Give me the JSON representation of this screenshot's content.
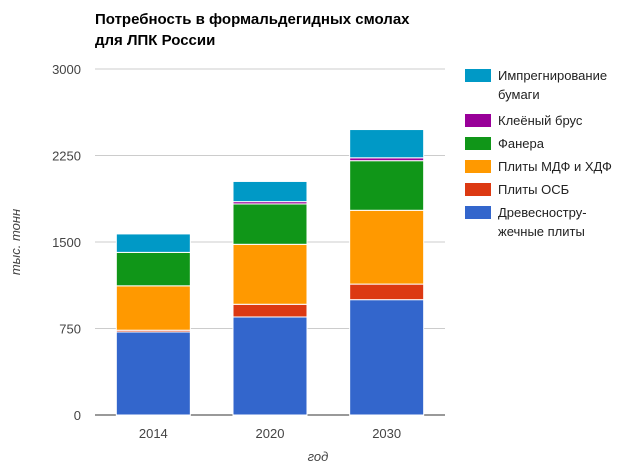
{
  "chart_data": {
    "type": "bar",
    "stacked": true,
    "title": [
      "Потребность в формальдегидных смолах",
      "для ЛПК России"
    ],
    "xlabel": "год",
    "ylabel": "тыс. тонн",
    "ylim": [
      0,
      3000
    ],
    "yticks": [
      "0",
      "750",
      "1500",
      "2250",
      "3000"
    ],
    "ytick_values": [
      0,
      750,
      1500,
      2250,
      3000
    ],
    "grid": true,
    "legend": "right",
    "categories": [
      "2014",
      "2020",
      "2030"
    ],
    "series": [
      {
        "name": [
          "Древесностру-",
          "жечные плиты"
        ],
        "color": "#3366cc",
        "values": [
          720,
          850,
          1000
        ]
      },
      {
        "name": [
          "Плиты ОСБ"
        ],
        "color": "#dc3912",
        "values": [
          15,
          110,
          135
        ]
      },
      {
        "name": [
          "Плиты МДФ и ХДФ"
        ],
        "color": "#ff9900",
        "values": [
          385,
          520,
          640
        ]
      },
      {
        "name": [
          "Фанера"
        ],
        "color": "#109618",
        "values": [
          290,
          350,
          430
        ]
      },
      {
        "name": [
          "Клеёный брус"
        ],
        "color": "#990099",
        "values": [
          0,
          20,
          25
        ]
      },
      {
        "name": [
          "Импрегнирование",
          "бумаги"
        ],
        "color": "#0099c6",
        "values": [
          160,
          175,
          245
        ]
      }
    ]
  }
}
